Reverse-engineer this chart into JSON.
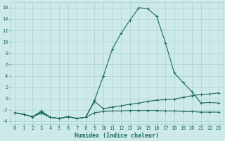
{
  "xlabel": "Humidex (Indice chaleur)",
  "background_color": "#ceeae8",
  "grid_color": "#aad4d0",
  "line_color": "#1a6b5a",
  "x": [
    0,
    1,
    2,
    3,
    4,
    5,
    6,
    7,
    8,
    9,
    10,
    11,
    12,
    13,
    14,
    15,
    16,
    17,
    18,
    19,
    20,
    21,
    22,
    23
  ],
  "y_max": [
    -2.5,
    -2.8,
    -3.2,
    -2.2,
    -3.3,
    -3.5,
    -3.2,
    -3.5,
    -3.3,
    -0.3,
    4.0,
    8.7,
    11.5,
    13.8,
    16.0,
    15.8,
    14.5,
    9.8,
    4.5,
    2.8,
    1.2,
    -0.8,
    -0.7,
    -0.8
  ],
  "y_mid": [
    -2.5,
    -2.8,
    -3.2,
    -2.4,
    -3.3,
    -3.5,
    -3.2,
    -3.5,
    -3.3,
    -0.5,
    -1.8,
    -1.5,
    -1.3,
    -1.0,
    -0.8,
    -0.5,
    -0.3,
    -0.2,
    -0.1,
    0.2,
    0.5,
    0.7,
    0.8,
    1.0
  ],
  "y_min": [
    -2.5,
    -2.8,
    -3.2,
    -2.6,
    -3.3,
    -3.5,
    -3.2,
    -3.5,
    -3.3,
    -2.5,
    -2.3,
    -2.2,
    -2.2,
    -2.1,
    -2.1,
    -2.1,
    -2.1,
    -2.2,
    -2.2,
    -2.3,
    -2.3,
    -2.4,
    -2.4,
    -2.4
  ],
  "ylim": [
    -4.5,
    17.0
  ],
  "xlim": [
    -0.5,
    23.5
  ],
  "yticks": [
    -4,
    -2,
    0,
    2,
    4,
    6,
    8,
    10,
    12,
    14,
    16
  ],
  "xticks": [
    0,
    1,
    2,
    3,
    4,
    5,
    6,
    7,
    8,
    9,
    10,
    11,
    12,
    13,
    14,
    15,
    16,
    17,
    18,
    19,
    20,
    21,
    22,
    23
  ],
  "marker": "+"
}
